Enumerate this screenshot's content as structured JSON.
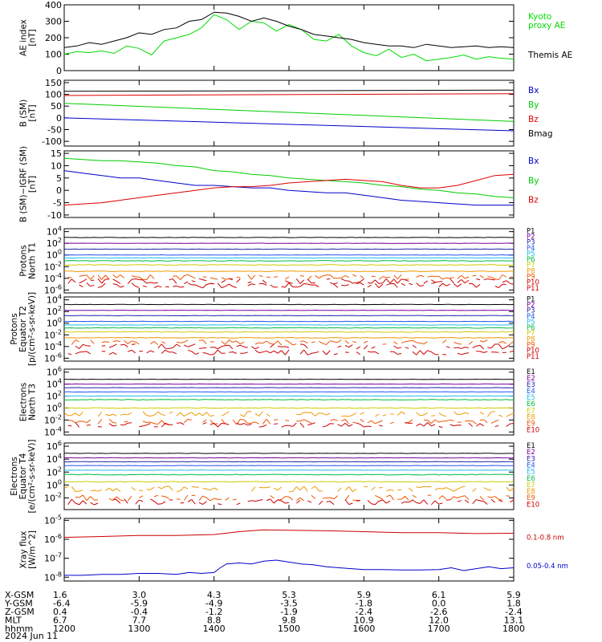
{
  "chart_data": [
    {
      "type": "line",
      "ylabel": [
        "AE index",
        "[nT]"
      ],
      "yticks": [
        "400",
        "300",
        "200",
        "100",
        "0"
      ],
      "ytick_values": [
        400,
        300,
        200,
        100,
        0
      ],
      "ylim": [
        0,
        400
      ],
      "series": [
        {
          "name": "Kyoto proxy AE",
          "color": "#00dd00",
          "legend": [
            "Kyoto",
            "proxy AE"
          ],
          "x": [
            1200,
            1210,
            1220,
            1230,
            1240,
            1250,
            1300,
            1310,
            1320,
            1330,
            1340,
            1350,
            1400,
            1410,
            1420,
            1430,
            1440,
            1450,
            1500,
            1510,
            1520,
            1530,
            1540,
            1550,
            1600,
            1610,
            1620,
            1630,
            1640,
            1650,
            1700,
            1710,
            1720,
            1730,
            1740,
            1750,
            1800
          ],
          "y": [
            100,
            115,
            110,
            120,
            105,
            150,
            135,
            95,
            180,
            200,
            220,
            260,
            340,
            310,
            250,
            300,
            290,
            240,
            280,
            250,
            190,
            180,
            220,
            150,
            110,
            90,
            130,
            80,
            100,
            60,
            70,
            80,
            95,
            70,
            85,
            75,
            70
          ]
        },
        {
          "name": "Themis AE",
          "color": "#000000",
          "legend": [
            "Themis AE"
          ],
          "x": [
            1200,
            1210,
            1220,
            1230,
            1240,
            1250,
            1300,
            1310,
            1320,
            1330,
            1340,
            1350,
            1400,
            1410,
            1420,
            1430,
            1440,
            1450,
            1500,
            1510,
            1520,
            1530,
            1540,
            1550,
            1600,
            1610,
            1620,
            1630,
            1640,
            1650,
            1700,
            1710,
            1720,
            1730,
            1740,
            1750,
            1800
          ],
          "y": [
            140,
            150,
            170,
            160,
            180,
            200,
            230,
            220,
            250,
            260,
            300,
            310,
            355,
            350,
            330,
            300,
            320,
            300,
            270,
            250,
            220,
            210,
            200,
            190,
            170,
            160,
            150,
            150,
            140,
            160,
            150,
            140,
            145,
            150,
            140,
            145,
            140
          ]
        }
      ]
    },
    {
      "type": "line",
      "ylabel": [
        "B (SM)",
        "[nT]"
      ],
      "yticks": [
        "150",
        "100",
        "50",
        "0",
        "-50",
        "-100"
      ],
      "ytick_values": [
        150,
        100,
        50,
        0,
        -50,
        -100
      ],
      "ylim": [
        -120,
        160
      ],
      "series": [
        {
          "name": "Bx",
          "color": "#0000cc",
          "x": [
            1200,
            1800
          ],
          "y": [
            0,
            -55
          ]
        },
        {
          "name": "By",
          "color": "#00cc00",
          "x": [
            1200,
            1800
          ],
          "y": [
            62,
            -15
          ]
        },
        {
          "name": "Bz",
          "color": "#dd0000",
          "x": [
            1200,
            1800
          ],
          "y": [
            95,
            103
          ]
        },
        {
          "name": "Bmag",
          "color": "#000000",
          "x": [
            1200,
            1800
          ],
          "y": [
            113,
            118
          ]
        }
      ]
    },
    {
      "type": "line",
      "ylabel": [
        "B (SM)−IGRF (SM)",
        "[nT]"
      ],
      "yticks": [
        "15",
        "10",
        "5",
        "0",
        "-5",
        "-10"
      ],
      "ytick_values": [
        15,
        10,
        5,
        0,
        -5,
        -10
      ],
      "ylim": [
        -11,
        16
      ],
      "series": [
        {
          "name": "Bx",
          "color": "#0000cc",
          "x": [
            1200,
            1215,
            1230,
            1245,
            1300,
            1315,
            1330,
            1345,
            1400,
            1415,
            1430,
            1445,
            1500,
            1515,
            1530,
            1545,
            1600,
            1615,
            1630,
            1645,
            1700,
            1715,
            1730,
            1745,
            1800
          ],
          "y": [
            8,
            7,
            6,
            5,
            5,
            4,
            3,
            2,
            2,
            1.5,
            1,
            1,
            0,
            -0.5,
            -1,
            -1,
            -2,
            -3,
            -4,
            -4.5,
            -5,
            -5.5,
            -6,
            -6,
            -6
          ]
        },
        {
          "name": "By",
          "color": "#00cc00",
          "x": [
            1200,
            1215,
            1230,
            1245,
            1300,
            1315,
            1330,
            1345,
            1400,
            1415,
            1430,
            1445,
            1500,
            1515,
            1530,
            1545,
            1600,
            1615,
            1630,
            1645,
            1700,
            1715,
            1730,
            1745,
            1800
          ],
          "y": [
            13,
            12.5,
            12,
            12,
            11.5,
            11,
            10,
            9.5,
            8,
            7.5,
            6.5,
            6,
            5,
            4.5,
            4,
            3.5,
            3,
            2,
            1.5,
            0.5,
            0,
            -1,
            -1.5,
            -2.5,
            -3
          ]
        },
        {
          "name": "Bz",
          "color": "#dd0000",
          "x": [
            1200,
            1215,
            1230,
            1245,
            1300,
            1315,
            1330,
            1345,
            1400,
            1415,
            1430,
            1445,
            1500,
            1515,
            1530,
            1545,
            1600,
            1615,
            1630,
            1645,
            1700,
            1715,
            1730,
            1745,
            1800
          ],
          "y": [
            -6,
            -5.5,
            -5,
            -4,
            -3,
            -2,
            -1,
            0,
            1,
            1.5,
            1.5,
            2,
            3,
            3.5,
            4,
            4.5,
            4,
            3.5,
            2,
            1,
            1,
            2,
            4,
            6,
            6.5
          ]
        }
      ]
    },
    {
      "type": "line",
      "log": true,
      "ylabel": [
        "Protons",
        "North T1"
      ],
      "yticks": [
        "10^4",
        "10^2",
        "10^0",
        "10^-2",
        "10^-4",
        "10^-6"
      ],
      "ytick_exps": [
        4,
        2,
        0,
        -2,
        -4,
        -6
      ],
      "ylim_exp": [
        -6.5,
        4.5
      ],
      "series": [
        {
          "name": "P1",
          "color": "#000000",
          "level_exp": 3.0
        },
        {
          "name": "P2",
          "color": "#7a0099",
          "level_exp": 2.0
        },
        {
          "name": "P3",
          "color": "#2222aa",
          "level_exp": 1.0
        },
        {
          "name": "P4",
          "color": "#2255ee",
          "level_exp": 0.0
        },
        {
          "name": "P5",
          "color": "#22bbee",
          "level_exp": -0.5
        },
        {
          "name": "P6",
          "color": "#00bb44",
          "level_exp": -1.0
        },
        {
          "name": "P7",
          "color": "#cccc00",
          "level_exp": -1.7
        },
        {
          "name": "P8",
          "color": "#ee9900",
          "level_exp": -2.8
        },
        {
          "name": "P9",
          "color": "#ee5500",
          "level_exp": -3.8
        },
        {
          "name": "P10",
          "color": "#cc0000",
          "level_exp": -4.5
        },
        {
          "name": "P11",
          "color": "#cc0000",
          "level_exp": -5.2
        }
      ]
    },
    {
      "type": "line",
      "log": true,
      "ylabel": [
        "Protons",
        "Equator T2",
        "[p/(cm²-s-sr-keV)]"
      ],
      "yticks": [
        "10^4",
        "10^2",
        "10^0",
        "10^-2",
        "10^-4",
        "10^-6"
      ],
      "ytick_exps": [
        4,
        2,
        0,
        -2,
        -4,
        -6
      ],
      "ylim_exp": [
        -6.5,
        4.5
      ],
      "series": [
        {
          "name": "P1",
          "color": "#000000",
          "level_exp": 3.2
        },
        {
          "name": "P2",
          "color": "#7a0099",
          "level_exp": 2.2
        },
        {
          "name": "P3",
          "color": "#2222aa",
          "level_exp": 1.3
        },
        {
          "name": "P4",
          "color": "#2255ee",
          "level_exp": 0.3
        },
        {
          "name": "P5",
          "color": "#22bbee",
          "level_exp": -0.3
        },
        {
          "name": "P6",
          "color": "#00bb44",
          "level_exp": -0.8
        },
        {
          "name": "P7",
          "color": "#cccc00",
          "level_exp": -1.5
        },
        {
          "name": "P8",
          "color": "#ee9900",
          "level_exp": -2.5
        },
        {
          "name": "P9",
          "color": "#ee5500",
          "level_exp": -3.3
        },
        {
          "name": "P10",
          "color": "#cc0000",
          "level_exp": -4.0
        },
        {
          "name": "P11",
          "color": "#cc0000",
          "level_exp": -5.0
        }
      ]
    },
    {
      "type": "line",
      "log": true,
      "ylabel": [
        "Electrons",
        "North T3"
      ],
      "yticks": [
        "10^6",
        "10^4",
        "10^2",
        "10^0",
        "10^-2",
        "10^-4"
      ],
      "ytick_exps": [
        6,
        4,
        2,
        0,
        -2,
        -4
      ],
      "ylim_exp": [
        -4.5,
        6.5
      ],
      "series": [
        {
          "name": "E1",
          "color": "#000000",
          "level_exp": 4.8
        },
        {
          "name": "E2",
          "color": "#7a0099",
          "level_exp": 4.0
        },
        {
          "name": "E3",
          "color": "#2222aa",
          "level_exp": 3.4
        },
        {
          "name": "E4",
          "color": "#2255ee",
          "level_exp": 2.7
        },
        {
          "name": "E5",
          "color": "#22bbee",
          "level_exp": 2.0
        },
        {
          "name": "E6",
          "color": "#00bb44",
          "level_exp": 1.4
        },
        {
          "name": "E7",
          "color": "#cccc00",
          "level_exp": 0.0
        },
        {
          "name": "E8",
          "color": "#ee9900",
          "level_exp": -1.0
        },
        {
          "name": "E9",
          "color": "#ee5500",
          "level_exp": -2.3
        },
        {
          "name": "E10",
          "color": "#cc0000",
          "level_exp": -2.8
        }
      ]
    },
    {
      "type": "line",
      "log": true,
      "ylabel": [
        "Electrons",
        "Equator T4",
        "[e/(cm²-s-sr-keV)]"
      ],
      "yticks": [
        "10^6",
        "10^4",
        "10^2",
        "10^0",
        "10^-2"
      ],
      "ytick_exps": [
        6,
        4,
        2,
        0,
        -2
      ],
      "ylim_exp": [
        -3.8,
        6.5
      ],
      "series": [
        {
          "name": "E1",
          "color": "#000000",
          "level_exp": 4.9
        },
        {
          "name": "E2",
          "color": "#7a0099",
          "level_exp": 4.2
        },
        {
          "name": "E3",
          "color": "#2222aa",
          "level_exp": 3.6
        },
        {
          "name": "E4",
          "color": "#2255ee",
          "level_exp": 3.0
        },
        {
          "name": "E5",
          "color": "#22bbee",
          "level_exp": 2.3
        },
        {
          "name": "E6",
          "color": "#00bb44",
          "level_exp": 1.6
        },
        {
          "name": "E7",
          "color": "#cccc00",
          "level_exp": 0.5
        },
        {
          "name": "E8",
          "color": "#ee9900",
          "level_exp": -0.6
        },
        {
          "name": "E9",
          "color": "#ee5500",
          "level_exp": -2.0
        },
        {
          "name": "E10",
          "color": "#cc0000",
          "level_exp": -2.6
        }
      ]
    },
    {
      "type": "line",
      "log": true,
      "ylabel": [
        "Xray flux",
        "[W/m^2]"
      ],
      "yticks": [
        "10^-5",
        "10^-6",
        "10^-7",
        "10^-8"
      ],
      "ytick_exps": [
        -5,
        -6,
        -7,
        -8
      ],
      "ylim_exp": [
        -8.2,
        -4.9
      ],
      "series": [
        {
          "name": "0.1-0.8 nm",
          "color": "#cc0000",
          "x": [
            1200,
            1230,
            1300,
            1330,
            1400,
            1420,
            1440,
            1500,
            1530,
            1600,
            1630,
            1700,
            1730,
            1800
          ],
          "y_exp": [
            -5.9,
            -5.85,
            -5.8,
            -5.8,
            -5.75,
            -5.6,
            -5.5,
            -5.52,
            -5.55,
            -5.6,
            -5.65,
            -5.65,
            -5.7,
            -5.68
          ]
        },
        {
          "name": "0.05-0.4 nm",
          "color": "#0000cc",
          "x": [
            1200,
            1215,
            1230,
            1245,
            1300,
            1315,
            1330,
            1340,
            1350,
            1400,
            1405,
            1410,
            1420,
            1430,
            1440,
            1450,
            1500,
            1510,
            1520,
            1530,
            1540,
            1550,
            1600,
            1615,
            1630,
            1645,
            1700,
            1710,
            1720,
            1730,
            1740,
            1750,
            1800
          ],
          "y_exp": [
            -7.9,
            -7.9,
            -7.85,
            -7.85,
            -7.8,
            -7.8,
            -7.85,
            -7.75,
            -7.8,
            -7.75,
            -7.5,
            -7.3,
            -7.25,
            -7.3,
            -7.15,
            -7.1,
            -7.2,
            -7.3,
            -7.35,
            -7.45,
            -7.5,
            -7.55,
            -7.6,
            -7.6,
            -7.62,
            -7.62,
            -7.6,
            -7.5,
            -7.65,
            -7.55,
            -7.45,
            -7.55,
            -7.5
          ]
        }
      ]
    }
  ],
  "x_axis": {
    "x_min": 1200,
    "x_max": 1800,
    "tick_values": [
      1200,
      1300,
      1400,
      1500,
      1600,
      1700,
      1800
    ],
    "rows": [
      {
        "label": "X-GSM",
        "values": [
          "1.6",
          "3.0",
          "4.3",
          "5.3",
          "5.9",
          "6.1",
          "5.9"
        ]
      },
      {
        "label": "Y-GSM",
        "values": [
          "-6.4",
          "-5.9",
          "-4.9",
          "-3.5",
          "-1.8",
          "0.0",
          "1.8"
        ]
      },
      {
        "label": "Z-GSM",
        "values": [
          "0.4",
          "-0.4",
          "-1.2",
          "-1.9",
          "-2.4",
          "-2.6",
          "-2.4"
        ]
      },
      {
        "label": "MLT",
        "values": [
          "6.7",
          "7.7",
          "8.8",
          "9.8",
          "10.9",
          "12.0",
          "13.1"
        ]
      },
      {
        "label": "hhmm",
        "values": [
          "1200",
          "1300",
          "1400",
          "1500",
          "1600",
          "1700",
          "1800"
        ]
      }
    ],
    "date": "2024 Jun 11"
  }
}
